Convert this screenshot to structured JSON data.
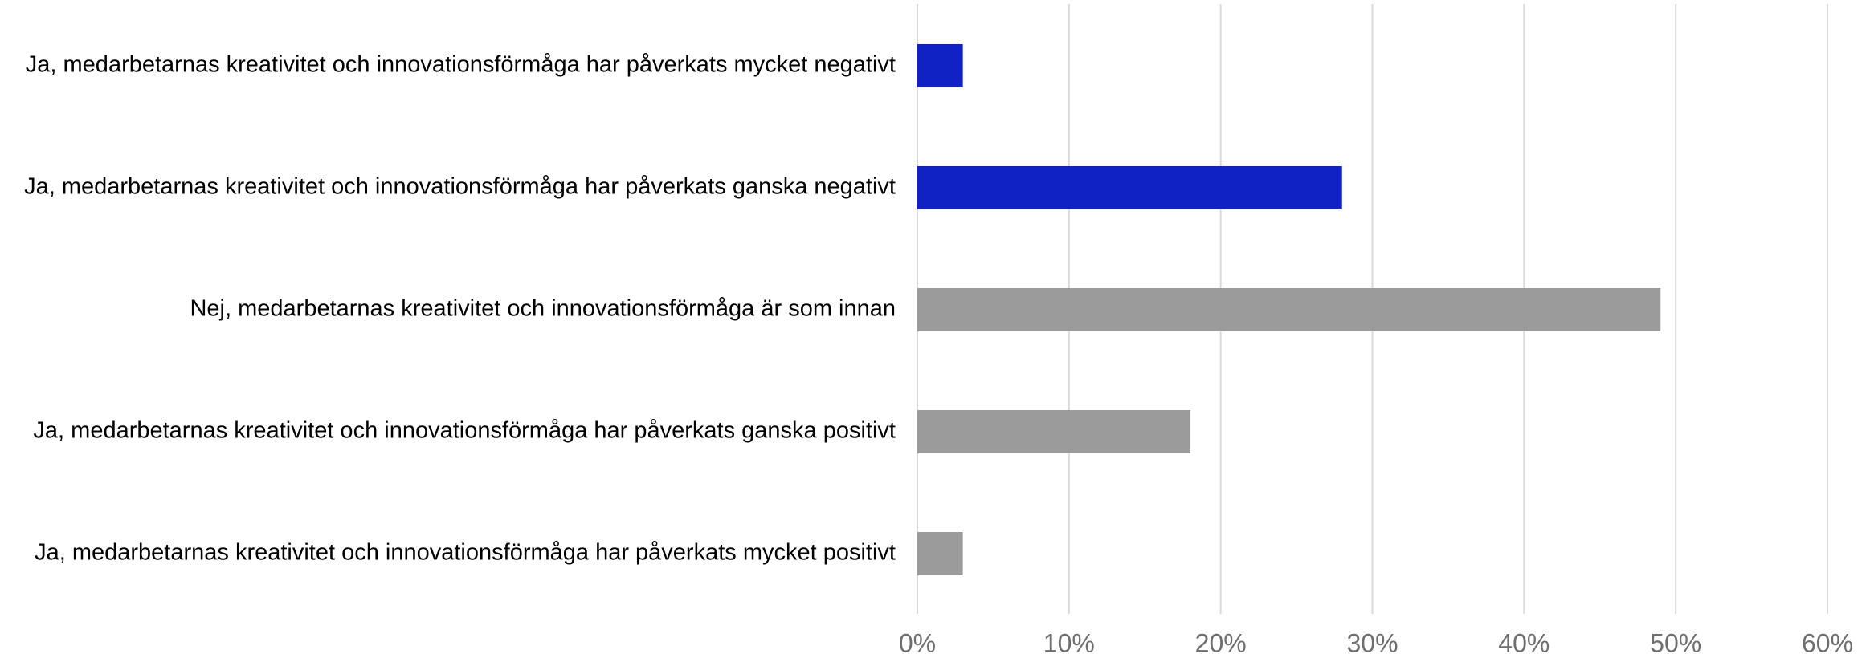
{
  "chart_data": {
    "type": "bar",
    "orientation": "horizontal",
    "categories": [
      "Ja, medarbetarnas kreativitet och innovationsförmåga har påverkats mycket negativt",
      "Ja, medarbetarnas kreativitet och innovationsförmåga har påverkats ganska negativt",
      "Nej, medarbetarnas kreativitet och innovationsförmåga är som innan",
      "Ja, medarbetarnas kreativitet och innovationsförmåga har påverkats ganska positivt",
      "Ja, medarbetarnas kreativitet och innovationsförmåga har påverkats mycket positivt"
    ],
    "values": [
      3,
      28,
      49,
      18,
      3
    ],
    "colors": [
      "#1022c4",
      "#1022c4",
      "#9b9b9b",
      "#9b9b9b",
      "#9b9b9b"
    ],
    "xlim": [
      0,
      60
    ],
    "xticks": [
      {
        "value": 0,
        "label": "0%"
      },
      {
        "value": 10,
        "label": "10%"
      },
      {
        "value": 20,
        "label": "20%"
      },
      {
        "value": 30,
        "label": "30%"
      },
      {
        "value": 40,
        "label": "40%"
      },
      {
        "value": 50,
        "label": "50%"
      },
      {
        "value": 60,
        "label": "60%"
      }
    ],
    "grid": true
  }
}
